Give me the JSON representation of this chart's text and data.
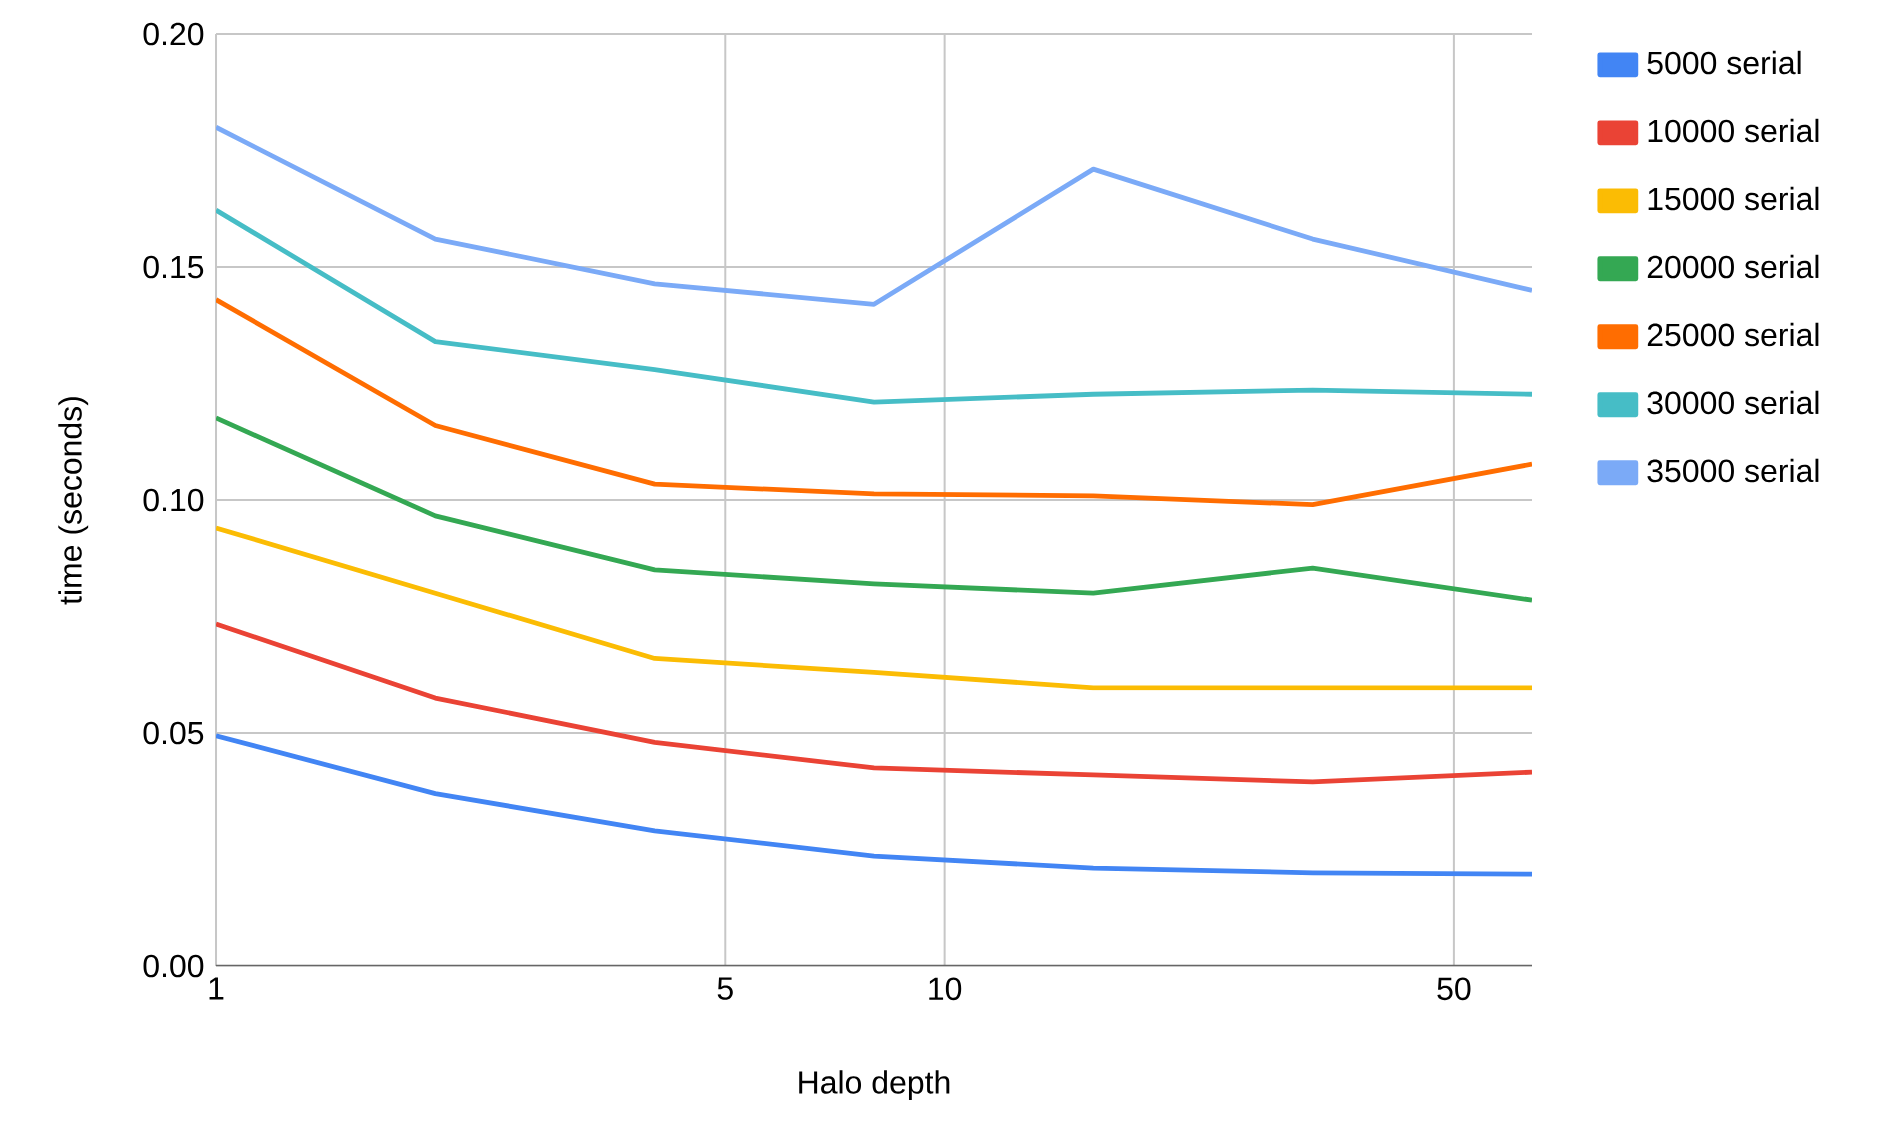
{
  "chart_data": {
    "type": "line",
    "xlabel": "Halo depth",
    "ylabel": "time (seconds)",
    "log": "x",
    "grid": true,
    "legend": "right",
    "marker": "none",
    "line_style": "solid",
    "x": [
      1,
      2,
      4,
      8,
      16,
      32,
      64
    ],
    "xlim": [
      1,
      64
    ],
    "xticks": [
      1,
      5,
      10,
      50
    ],
    "ylim": [
      0,
      0.2
    ],
    "yticks": [
      {
        "value": 0,
        "label": "0.00"
      },
      {
        "value": 0.05,
        "label": "0.05"
      },
      {
        "value": 0.1,
        "label": "0.10"
      },
      {
        "value": 0.15,
        "label": "0.15"
      },
      {
        "value": 0.2,
        "label": "0.20"
      }
    ],
    "series": [
      {
        "name": "5000 serial",
        "color": "#4285f4",
        "values": [
          0.0494,
          0.037,
          0.029,
          0.0236,
          0.021,
          0.02,
          0.0197
        ]
      },
      {
        "name": "10000 serial",
        "color": "#ea4335",
        "values": [
          0.0734,
          0.0575,
          0.048,
          0.0425,
          0.041,
          0.0395,
          0.0416
        ]
      },
      {
        "name": "15000 serial",
        "color": "#fbbc04",
        "values": [
          0.094,
          0.08,
          0.066,
          0.063,
          0.0597,
          0.0597,
          0.0597
        ]
      },
      {
        "name": "20000 serial",
        "color": "#34a853",
        "values": [
          0.1176,
          0.0966,
          0.085,
          0.082,
          0.08,
          0.0854,
          0.0785
        ]
      },
      {
        "name": "25000 serial",
        "color": "#ff6d01",
        "values": [
          0.143,
          0.116,
          0.1034,
          0.1013,
          0.1009,
          0.099,
          0.1077
        ]
      },
      {
        "name": "30000 serial",
        "color": "#46bdc6",
        "values": [
          0.1622,
          0.134,
          0.128,
          0.121,
          0.1227,
          0.1236,
          0.1227
        ]
      },
      {
        "name": "35000 serial",
        "color": "#7baaf7",
        "values": [
          0.18,
          0.156,
          0.1464,
          0.142,
          0.171,
          0.156,
          0.145
        ]
      }
    ]
  }
}
